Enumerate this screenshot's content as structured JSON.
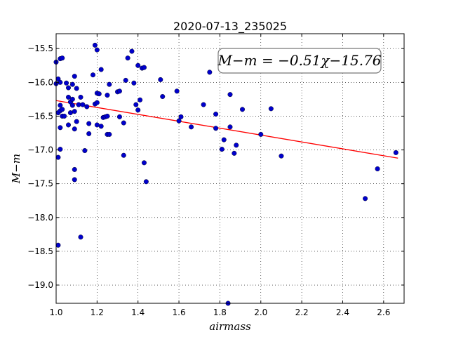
{
  "chart_data": {
    "type": "scatter",
    "title": "2020-07-13_235025",
    "xlabel": "airmass",
    "ylabel": "M−m",
    "xlim": [
      1.0,
      2.7
    ],
    "ylim": [
      -19.27,
      -15.28
    ],
    "y_inverted": true,
    "grid": true,
    "x_ticks": [
      1.0,
      1.2,
      1.4,
      1.6,
      1.8,
      2.0,
      2.2,
      2.4,
      2.6
    ],
    "x_tick_labels": [
      "1.0",
      "1.2",
      "1.4",
      "1.6",
      "1.8",
      "2.0",
      "2.2",
      "2.4",
      "2.6"
    ],
    "y_ticks": [
      -15.5,
      -16.0,
      -16.5,
      -17.0,
      -17.5,
      -18.0,
      -18.5,
      -19.0
    ],
    "y_tick_labels": [
      "−15.5",
      "−16.0",
      "−16.5",
      "−17.0",
      "−17.5",
      "−18.0",
      "−18.5",
      "−19.0"
    ],
    "annotation": "M−m = −0.51χ−15.76",
    "fit": {
      "slope": -0.51,
      "intercept": -15.76,
      "x_range": [
        1.0,
        2.67
      ],
      "color": "#ff0000"
    },
    "marker_color": "#0000cc",
    "series": [
      {
        "points": [
          [
            1.0,
            -15.7
          ],
          [
            1.0,
            -16.02
          ],
          [
            1.01,
            -15.95
          ],
          [
            1.01,
            -18.41
          ],
          [
            1.01,
            -17.11
          ],
          [
            1.02,
            -15.65
          ],
          [
            1.03,
            -15.64
          ],
          [
            1.02,
            -16.0
          ],
          [
            1.02,
            -16.34
          ],
          [
            1.01,
            -16.45
          ],
          [
            1.02,
            -16.42
          ],
          [
            1.03,
            -16.5
          ],
          [
            1.03,
            -16.4
          ],
          [
            1.02,
            -16.67
          ],
          [
            1.02,
            -16.99
          ],
          [
            1.04,
            -16.5
          ],
          [
            1.05,
            -16.01
          ],
          [
            1.06,
            -16.22
          ],
          [
            1.06,
            -16.08
          ],
          [
            1.07,
            -16.29
          ],
          [
            1.07,
            -16.45
          ],
          [
            1.06,
            -16.63
          ],
          [
            1.08,
            -16.25
          ],
          [
            1.08,
            -16.34
          ],
          [
            1.08,
            -16.03
          ],
          [
            1.09,
            -15.91
          ],
          [
            1.09,
            -16.43
          ],
          [
            1.09,
            -16.69
          ],
          [
            1.1,
            -16.09
          ],
          [
            1.09,
            -17.29
          ],
          [
            1.09,
            -17.44
          ],
          [
            1.1,
            -16.58
          ],
          [
            1.11,
            -16.33
          ],
          [
            1.12,
            -16.22
          ],
          [
            1.13,
            -16.33
          ],
          [
            1.12,
            -18.29
          ],
          [
            1.14,
            -17.01
          ],
          [
            1.15,
            -16.36
          ],
          [
            1.16,
            -16.61
          ],
          [
            1.16,
            -16.76
          ],
          [
            1.18,
            -15.89
          ],
          [
            1.19,
            -15.45
          ],
          [
            1.2,
            -15.52
          ],
          [
            1.2,
            -16.16
          ],
          [
            1.21,
            -16.17
          ],
          [
            1.19,
            -16.32
          ],
          [
            1.2,
            -16.3
          ],
          [
            1.2,
            -16.63
          ],
          [
            1.22,
            -16.65
          ],
          [
            1.22,
            -15.81
          ],
          [
            1.23,
            -16.52
          ],
          [
            1.24,
            -16.51
          ],
          [
            1.25,
            -16.19
          ],
          [
            1.25,
            -16.5
          ],
          [
            1.25,
            -16.77
          ],
          [
            1.26,
            -16.77
          ],
          [
            1.26,
            -16.03
          ],
          [
            1.3,
            -16.14
          ],
          [
            1.31,
            -16.13
          ],
          [
            1.31,
            -16.51
          ],
          [
            1.33,
            -16.6
          ],
          [
            1.33,
            -17.08
          ],
          [
            1.34,
            -15.97
          ],
          [
            1.35,
            -15.64
          ],
          [
            1.37,
            -15.54
          ],
          [
            1.38,
            -16.01
          ],
          [
            1.39,
            -16.33
          ],
          [
            1.4,
            -15.75
          ],
          [
            1.4,
            -16.41
          ],
          [
            1.41,
            -16.26
          ],
          [
            1.42,
            -15.79
          ],
          [
            1.43,
            -15.78
          ],
          [
            1.43,
            -17.19
          ],
          [
            1.44,
            -17.47
          ],
          [
            1.51,
            -15.96
          ],
          [
            1.52,
            -16.21
          ],
          [
            1.59,
            -16.13
          ],
          [
            1.6,
            -16.57
          ],
          [
            1.61,
            -16.51
          ],
          [
            1.66,
            -16.66
          ],
          [
            1.72,
            -16.33
          ],
          [
            1.75,
            -15.85
          ],
          [
            1.78,
            -16.47
          ],
          [
            1.78,
            -16.68
          ],
          [
            1.81,
            -16.99
          ],
          [
            1.82,
            -16.85
          ],
          [
            1.84,
            -19.27
          ],
          [
            1.85,
            -16.18
          ],
          [
            1.85,
            -16.66
          ],
          [
            1.87,
            -17.05
          ],
          [
            1.88,
            -16.93
          ],
          [
            1.91,
            -16.4
          ],
          [
            2.0,
            -16.77
          ],
          [
            2.05,
            -16.39
          ],
          [
            2.1,
            -17.09
          ],
          [
            2.51,
            -17.72
          ],
          [
            2.57,
            -17.28
          ],
          [
            2.66,
            -17.04
          ]
        ]
      }
    ]
  }
}
